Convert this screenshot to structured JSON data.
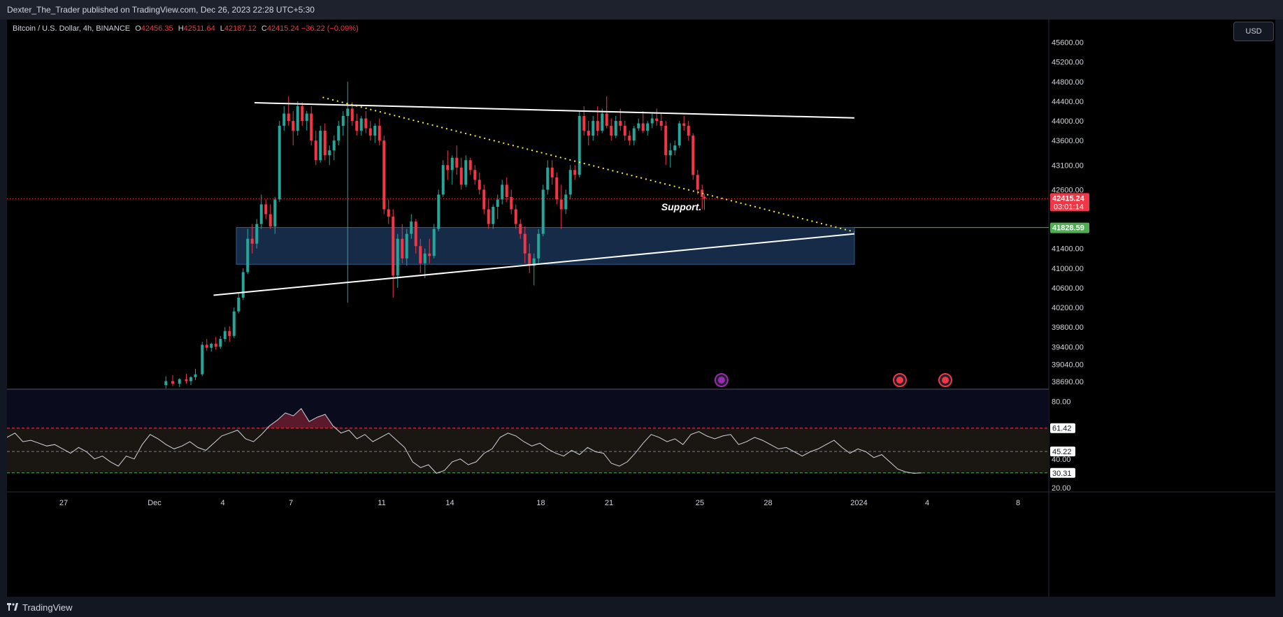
{
  "header": {
    "published": "Dexter_The_Trader published on TradingView.com, Dec 26, 2023 22:28 UTC+5:30"
  },
  "legend": {
    "symbol": "Bitcoin / U.S. Dollar, 4h, BINANCE",
    "o_label": "O",
    "o": "42456.35",
    "h_label": "H",
    "h": "42511.64",
    "l_label": "L",
    "l": "42187.12",
    "c_label": "C",
    "c": "42415.24",
    "change": "−36.22 (−0.09%)"
  },
  "currency_button": "USD",
  "footer": {
    "brand": "TradingView"
  },
  "colors": {
    "up": "#26a69a",
    "down": "#f23645",
    "zone": "#1e3a5f",
    "trendline": "#ffffff",
    "dotted": "#ffeb3b",
    "rsi_line": "#d1d4dc",
    "background": "#000000",
    "panel": "#131722"
  },
  "chart_data": [
    {
      "type": "candlestick",
      "title": "Bitcoin / U.S. Dollar, 4h, BINANCE",
      "ylim": [
        38550,
        45950
      ],
      "y_ticks": [
        "45600.00",
        "45200.00",
        "44800.00",
        "44400.00",
        "44000.00",
        "43600.00",
        "43100.00",
        "42600.00",
        "41400.00",
        "41000.00",
        "40600.00",
        "40200.00",
        "39800.00",
        "39400.00",
        "39040.00",
        "38690.00"
      ],
      "y_tick_values": [
        45600,
        45200,
        44800,
        44400,
        44000,
        43600,
        43100,
        42600,
        41400,
        41000,
        40600,
        40200,
        39800,
        39400,
        39040,
        38690
      ],
      "x_ticks": [
        {
          "label": "27",
          "day": -4
        },
        {
          "label": "Dec",
          "day": 0
        },
        {
          "label": "4",
          "day": 3
        },
        {
          "label": "7",
          "day": 6
        },
        {
          "label": "11",
          "day": 10
        },
        {
          "label": "14",
          "day": 13
        },
        {
          "label": "18",
          "day": 17
        },
        {
          "label": "21",
          "day": 20
        },
        {
          "label": "25",
          "day": 24
        },
        {
          "label": "28",
          "day": 27
        },
        {
          "label": "2024",
          "day": 31
        },
        {
          "label": "4",
          "day": 34
        },
        {
          "label": "8",
          "day": 38
        }
      ],
      "price_labels": [
        {
          "text": "42415.24",
          "sub": "03:01:14",
          "price": 42415.24,
          "color": "#f23645"
        },
        {
          "text": "41828.59",
          "price": 41828.59,
          "color": "#4caf50"
        }
      ],
      "annotations": [
        {
          "text": "Support.",
          "day": 22.3,
          "price": 42180
        }
      ],
      "support_zone": {
        "price_top": 41830,
        "price_bottom": 41080,
        "day_start": 3.6,
        "day_end": 30.8
      },
      "trendlines": [
        {
          "style": "solid",
          "from": {
            "day": 4.4,
            "price": 44370
          },
          "to": {
            "day": 30.8,
            "price": 44060
          }
        },
        {
          "style": "solid",
          "from": {
            "day": 2.6,
            "price": 40450
          },
          "to": {
            "day": 30.8,
            "price": 41700
          }
        },
        {
          "style": "dotted",
          "from": {
            "day": 7.4,
            "price": 44480
          },
          "to": {
            "day": 30.8,
            "price": 41740
          }
        }
      ],
      "candles": [
        [
          0.5,
          38620,
          38800,
          38550,
          38700
        ],
        [
          0.8,
          38700,
          38820,
          38600,
          38650
        ],
        [
          1.1,
          38650,
          38760,
          38580,
          38740
        ],
        [
          1.4,
          38740,
          38850,
          38650,
          38700
        ],
        [
          1.6,
          38700,
          38800,
          38620,
          38780
        ],
        [
          1.8,
          38780,
          38950,
          38720,
          38840
        ],
        [
          2.1,
          38840,
          39500,
          38800,
          39440
        ],
        [
          2.3,
          39440,
          39560,
          39320,
          39380
        ],
        [
          2.5,
          39380,
          39480,
          39300,
          39460
        ],
        [
          2.7,
          39460,
          39600,
          39340,
          39400
        ],
        [
          2.9,
          39400,
          39620,
          39360,
          39560
        ],
        [
          3.1,
          39560,
          39800,
          39500,
          39720
        ],
        [
          3.3,
          39720,
          39820,
          39500,
          39620
        ],
        [
          3.5,
          39620,
          40200,
          39580,
          40120
        ],
        [
          3.7,
          40120,
          40500,
          40080,
          40400
        ],
        [
          3.9,
          40400,
          41000,
          40350,
          40920
        ],
        [
          4.1,
          40920,
          41800,
          40880,
          41600
        ],
        [
          4.3,
          41600,
          41900,
          41300,
          41500
        ],
        [
          4.5,
          41500,
          42000,
          41400,
          41900
        ],
        [
          4.7,
          41900,
          42500,
          41800,
          42300
        ],
        [
          4.9,
          42300,
          42400,
          42000,
          42100
        ],
        [
          5.1,
          42100,
          42300,
          41800,
          41850
        ],
        [
          5.3,
          41850,
          42450,
          41700,
          42400
        ],
        [
          5.5,
          42400,
          44000,
          42350,
          43900
        ],
        [
          5.7,
          43900,
          44300,
          43800,
          44150
        ],
        [
          5.9,
          44150,
          44500,
          43900,
          44000
        ],
        [
          6.1,
          44000,
          44200,
          43500,
          43800
        ],
        [
          6.3,
          43800,
          44400,
          43700,
          44300
        ],
        [
          6.5,
          44300,
          44380,
          43900,
          44000
        ],
        [
          6.7,
          44000,
          44200,
          43800,
          44150
        ],
        [
          6.9,
          44150,
          44300,
          43500,
          43600
        ],
        [
          7.1,
          43600,
          43800,
          43100,
          43200
        ],
        [
          7.3,
          43200,
          43900,
          43150,
          43800
        ],
        [
          7.5,
          43800,
          43950,
          43200,
          43300
        ],
        [
          7.7,
          43300,
          43500,
          43100,
          43400
        ],
        [
          7.9,
          43400,
          43700,
          43200,
          43600
        ],
        [
          8.1,
          43600,
          44000,
          43500,
          43900
        ],
        [
          8.3,
          43900,
          44200,
          43700,
          44100
        ],
        [
          8.5,
          44100,
          44800,
          40300,
          44250
        ],
        [
          8.7,
          44250,
          44380,
          43900,
          44000
        ],
        [
          8.9,
          44000,
          44150,
          43700,
          43800
        ],
        [
          9.1,
          43800,
          44100,
          43700,
          44050
        ],
        [
          9.3,
          44050,
          44200,
          43750,
          43850
        ],
        [
          9.5,
          43850,
          44000,
          43600,
          43700
        ],
        [
          9.7,
          43700,
          43950,
          43550,
          43900
        ],
        [
          9.9,
          43900,
          44050,
          43500,
          43600
        ],
        [
          10.1,
          43600,
          43700,
          42100,
          42200
        ],
        [
          10.3,
          42200,
          42400,
          41900,
          42050
        ],
        [
          10.5,
          42050,
          42200,
          40400,
          40850
        ],
        [
          10.7,
          40850,
          41700,
          40600,
          41600
        ],
        [
          10.9,
          41600,
          41900,
          41100,
          41200
        ],
        [
          11.1,
          41200,
          41800,
          41050,
          41700
        ],
        [
          11.3,
          41700,
          42100,
          41600,
          41950
        ],
        [
          11.5,
          41950,
          42000,
          41300,
          41450
        ],
        [
          11.7,
          41450,
          41600,
          40900,
          41100
        ],
        [
          11.9,
          41100,
          41400,
          40800,
          41300
        ],
        [
          12.1,
          41300,
          41600,
          41100,
          41250
        ],
        [
          12.3,
          41250,
          41900,
          41200,
          41800
        ],
        [
          12.5,
          41800,
          42600,
          41750,
          42500
        ],
        [
          12.7,
          42500,
          43200,
          42450,
          43100
        ],
        [
          12.9,
          43100,
          43400,
          42800,
          43000
        ],
        [
          13.1,
          43000,
          43300,
          42700,
          43250
        ],
        [
          13.3,
          43250,
          43500,
          42900,
          43050
        ],
        [
          13.5,
          43050,
          43250,
          42600,
          42700
        ],
        [
          13.7,
          42700,
          43300,
          42650,
          43200
        ],
        [
          13.9,
          43200,
          43250,
          42900,
          43000
        ],
        [
          14.1,
          43000,
          43100,
          42700,
          42800
        ],
        [
          14.3,
          42800,
          42950,
          42500,
          42600
        ],
        [
          14.5,
          42600,
          42700,
          42100,
          42200
        ],
        [
          14.7,
          42200,
          42400,
          41800,
          41900
        ],
        [
          14.9,
          41900,
          42300,
          41800,
          42250
        ],
        [
          15.1,
          42250,
          42500,
          42000,
          42400
        ],
        [
          15.3,
          42400,
          42800,
          42300,
          42700
        ],
        [
          15.5,
          42700,
          42850,
          42350,
          42450
        ],
        [
          15.7,
          42450,
          42600,
          42100,
          42200
        ],
        [
          15.9,
          42200,
          42300,
          41800,
          41900
        ],
        [
          16.1,
          41900,
          42000,
          41600,
          41700
        ],
        [
          16.3,
          41700,
          41850,
          41100,
          41300
        ],
        [
          16.5,
          41300,
          41500,
          40900,
          41050
        ],
        [
          16.7,
          41050,
          41300,
          40650,
          41200
        ],
        [
          16.9,
          41200,
          41800,
          41100,
          41700
        ],
        [
          17.1,
          41700,
          42700,
          41650,
          42600
        ],
        [
          17.3,
          42600,
          43200,
          42500,
          43050
        ],
        [
          17.5,
          43050,
          43200,
          42700,
          42850
        ],
        [
          17.7,
          42850,
          42950,
          42300,
          42400
        ],
        [
          17.9,
          42400,
          42700,
          41800,
          42200
        ],
        [
          18.1,
          42200,
          42600,
          42100,
          42500
        ],
        [
          18.3,
          42500,
          43100,
          42400,
          43000
        ],
        [
          18.5,
          43000,
          43100,
          42800,
          42900
        ],
        [
          18.7,
          42900,
          44200,
          42850,
          44100
        ],
        [
          18.9,
          44100,
          44300,
          43700,
          43800
        ],
        [
          19.1,
          43800,
          44000,
          43500,
          43700
        ],
        [
          19.3,
          43700,
          44100,
          43600,
          44000
        ],
        [
          19.5,
          44000,
          44300,
          43700,
          43800
        ],
        [
          19.7,
          43800,
          44250,
          43750,
          44150
        ],
        [
          19.9,
          44150,
          44500,
          43850,
          43900
        ],
        [
          20.1,
          43900,
          44050,
          43600,
          43700
        ],
        [
          20.3,
          43700,
          44100,
          43650,
          44000
        ],
        [
          20.5,
          44000,
          44250,
          43800,
          43900
        ],
        [
          20.7,
          43900,
          44000,
          43600,
          43700
        ],
        [
          20.9,
          43700,
          43800,
          43500,
          43600
        ],
        [
          21.1,
          43600,
          43900,
          43500,
          43850
        ],
        [
          21.3,
          43850,
          44050,
          43800,
          43950
        ],
        [
          21.5,
          43950,
          44200,
          43750,
          43800
        ],
        [
          21.7,
          43800,
          44000,
          43700,
          43950
        ],
        [
          21.9,
          43950,
          44150,
          43850,
          44050
        ],
        [
          22.1,
          44050,
          44250,
          43900,
          44000
        ],
        [
          22.3,
          44000,
          44150,
          43800,
          43900
        ],
        [
          22.5,
          43900,
          44000,
          43100,
          43300
        ],
        [
          22.7,
          43300,
          43550,
          43050,
          43400
        ],
        [
          22.9,
          43400,
          43600,
          43300,
          43500
        ],
        [
          23.1,
          43500,
          44000,
          43450,
          43950
        ],
        [
          23.3,
          43950,
          44100,
          43800,
          43900
        ],
        [
          23.5,
          43900,
          44000,
          43600,
          43700
        ],
        [
          23.7,
          43700,
          43750,
          42800,
          42900
        ],
        [
          23.9,
          42900,
          43000,
          42500,
          42600
        ],
        [
          24.1,
          42600,
          42700,
          42200,
          42450
        ],
        [
          24.2,
          42456.35,
          42511.64,
          42187.12,
          42415.24
        ]
      ]
    },
    {
      "type": "line",
      "title": "RSI",
      "ylim": [
        20,
        88
      ],
      "y_ticks": [
        "80.00",
        "40.00",
        "20.00"
      ],
      "y_tick_values": [
        80,
        40,
        20
      ],
      "levels": [
        {
          "label": "61.42",
          "value": 61.42,
          "style": "dashed",
          "color": "#f23645"
        },
        {
          "label": "45.22",
          "value": 45.22,
          "style": "dashed",
          "color": "#787b86"
        },
        {
          "label": "30.31",
          "value": 30.31,
          "style": "dashed",
          "color": "#4caf50"
        }
      ],
      "series": [
        {
          "name": "RSI",
          "values": [
            55,
            58,
            52,
            53,
            51,
            49,
            50,
            47,
            44,
            48,
            45,
            40,
            42,
            38,
            35,
            42,
            40,
            50,
            57,
            54,
            50,
            47,
            49,
            52,
            48,
            46,
            51,
            56,
            58,
            60,
            54,
            52,
            57,
            63,
            67,
            72,
            70,
            75,
            66,
            69,
            71,
            63,
            58,
            60,
            54,
            57,
            52,
            55,
            58,
            53,
            48,
            38,
            34,
            36,
            30,
            32,
            38,
            40,
            36,
            38,
            44,
            47,
            55,
            58,
            56,
            52,
            49,
            51,
            47,
            44,
            42,
            46,
            43,
            48,
            45,
            44,
            37,
            35,
            38,
            44,
            51,
            57,
            55,
            52,
            54,
            50,
            57,
            59,
            56,
            54,
            56,
            57,
            50,
            52,
            55,
            53,
            50,
            47,
            48,
            45,
            42,
            45,
            47,
            50,
            53,
            48,
            44,
            47,
            45,
            41,
            43,
            38,
            33,
            31,
            30,
            30.31
          ]
        }
      ]
    }
  ]
}
